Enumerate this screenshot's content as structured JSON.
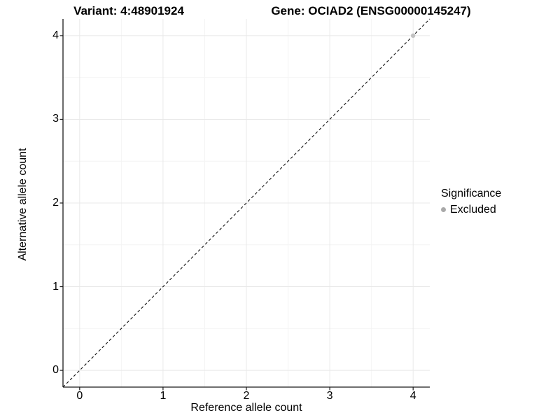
{
  "header": {
    "variant_title": "Variant: 4:48901924",
    "gene_title": "Gene: OCIAD2 (ENSG00000145247)"
  },
  "chart_data": {
    "type": "scatter",
    "xlabel": "Reference allele count",
    "ylabel": "Alternative allele count",
    "xlim": [
      -0.2,
      4.2
    ],
    "ylim": [
      -0.2,
      4.2
    ],
    "x_ticks": [
      0,
      1,
      2,
      3,
      4
    ],
    "y_ticks": [
      0,
      1,
      2,
      3,
      4
    ],
    "x_minor_ticks": [
      0.5,
      1.5,
      2.5,
      3.5
    ],
    "y_minor_ticks": [
      0.5,
      1.5,
      2.5,
      3.5
    ],
    "grid": {
      "major": true,
      "minor": true,
      "major_color": "#e8e8e8",
      "minor_color": "#f4f4f4"
    },
    "axis_color": "#1a1a1a",
    "identity_line": {
      "style": "dashed",
      "from": [
        -0.2,
        -0.2
      ],
      "to": [
        4.2,
        4.2
      ],
      "color": "#111111"
    },
    "points": [
      {
        "x": 4,
        "y": 4,
        "significance": "Excluded",
        "color": "#c2c2c2"
      }
    ],
    "legend": {
      "title": "Significance",
      "position": "right",
      "entries": [
        {
          "label": "Excluded",
          "color": "#a9a9a9"
        }
      ]
    }
  }
}
